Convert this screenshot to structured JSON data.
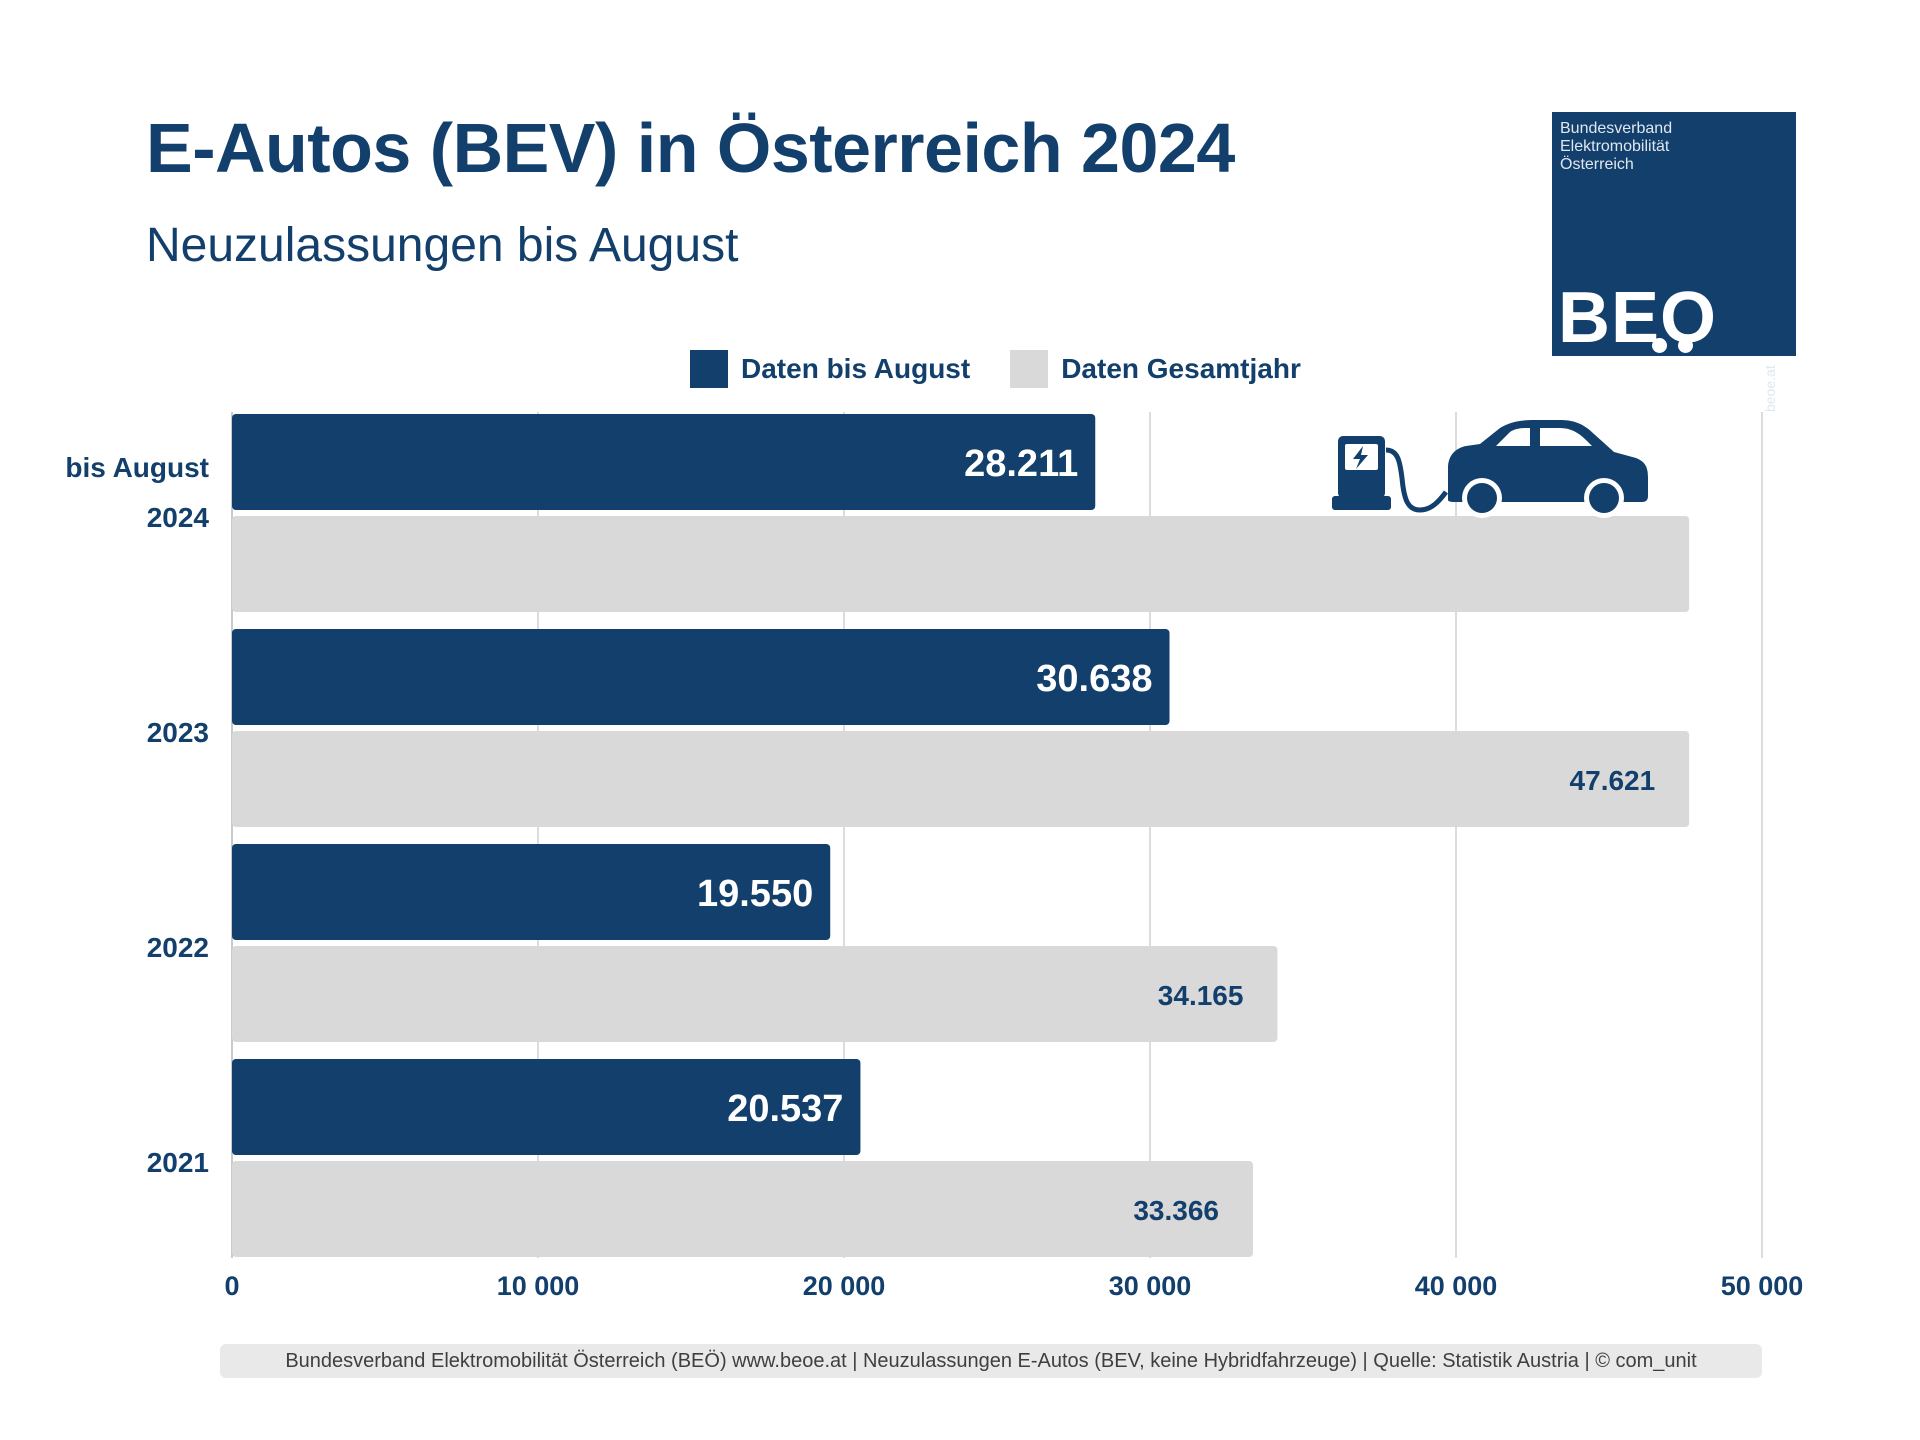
{
  "title": "E-Autos (BEV) in Österreich 2024",
  "subtitle": "Neuzulassungen bis August",
  "logo": {
    "lines": [
      "Bundesverband",
      "Elektromobilität",
      "Österreich"
    ],
    "wordmark": "BEO",
    "url": "beoe.at"
  },
  "legend": {
    "august_label": "Daten bis August",
    "year_label": "Daten Gesamtjahr"
  },
  "footer": "Bundesverband Elektromobilität Österreich (BEÖ) www.beoe.at | Neuzulassungen E-Autos (BEV, keine Hybridfahrzeuge) | Quelle: Statistik Austria | © com_unit",
  "colors": {
    "august": "#123f6b",
    "full_year": "#d9d9d9",
    "text": "#123f6b",
    "grid": "#d0d0d0"
  },
  "icons": [
    "charging-station-icon",
    "electric-car-icon"
  ],
  "chart_data": {
    "type": "bar",
    "orientation": "horizontal",
    "categories": [
      "2024",
      "2023",
      "2022",
      "2021"
    ],
    "category_prefix": {
      "2024": "bis August"
    },
    "series": [
      {
        "name": "Daten bis August",
        "values": [
          28211,
          30638,
          19550,
          20537
        ],
        "labels": [
          "28.211",
          "30.638",
          "19.550",
          "20.537"
        ]
      },
      {
        "name": "Daten Gesamtjahr",
        "values": [
          47621,
          47621,
          34165,
          33366
        ],
        "labels": [
          "",
          "47.621",
          "34.165",
          "33.366"
        ]
      }
    ],
    "xlim": [
      0,
      50000
    ],
    "xticks": [
      0,
      10000,
      20000,
      30000,
      40000,
      50000
    ],
    "xtick_labels": [
      "0",
      "10 000",
      "20 000",
      "30 000",
      "40 000",
      "50 000"
    ],
    "grid": true,
    "legend_position": "top"
  }
}
